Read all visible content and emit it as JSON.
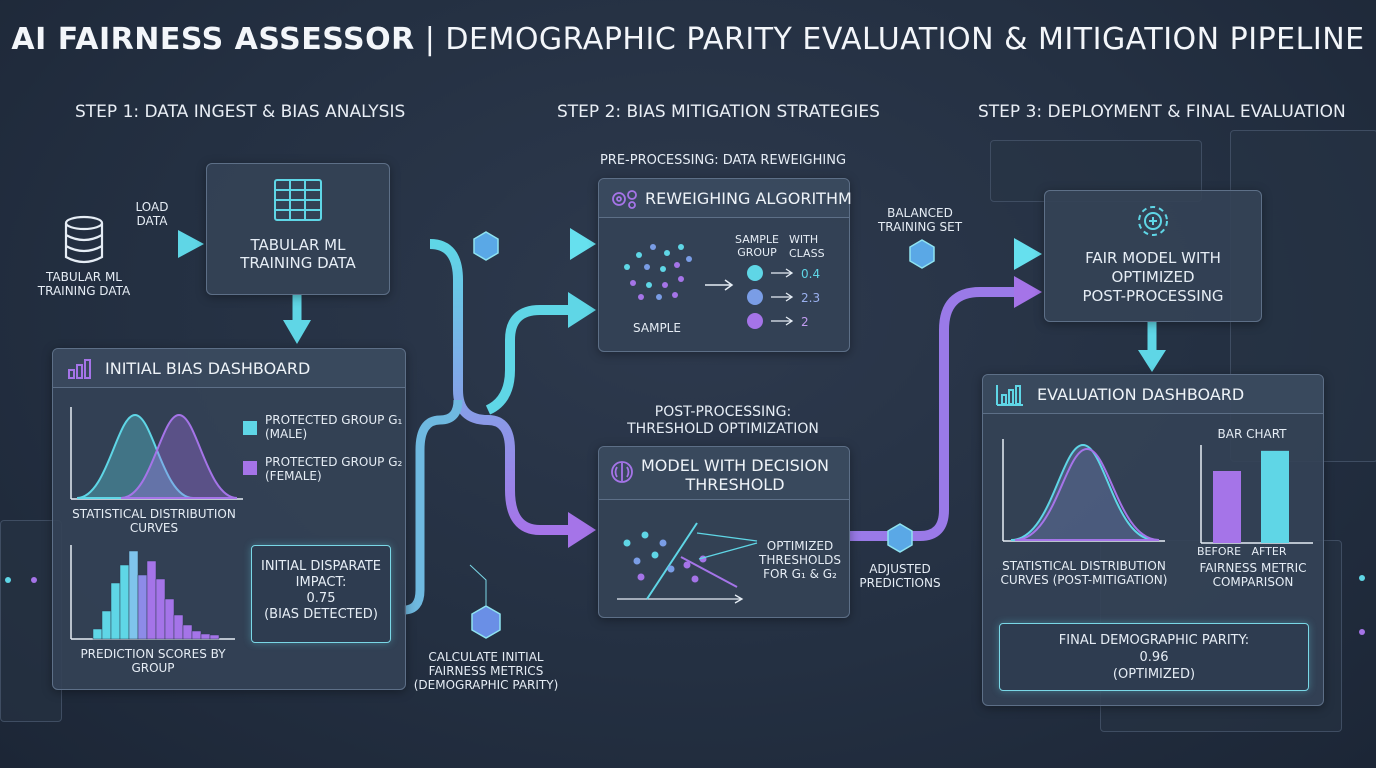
{
  "title_bold": "AI FAIRNESS ASSESSOR",
  "title_rest": " | DEMOGRAPHIC PARITY EVALUATION & MITIGATION PIPELINE",
  "steps": {
    "step1": "STEP 1: DATA INGEST & BIAS ANALYSIS",
    "step2": "STEP 2: BIAS MITIGATION STRATEGIES",
    "step3": "STEP 3: DEPLOYMENT & FINAL EVALUATION"
  },
  "ingest": {
    "load_data": [
      "LOAD",
      "DATA"
    ],
    "db_label": [
      "TABULAR ML",
      "TRAINING DATA"
    ],
    "card_label": [
      "TABULAR ML",
      "TRAINING DATA"
    ]
  },
  "initial_dashboard": {
    "title": "INITIAL BIAS DASHBOARD",
    "legend_g1": [
      "PROTECTED GROUP G₁",
      "(MALE)"
    ],
    "legend_g2": [
      "PROTECTED GROUP G₂",
      "(FEMALE)"
    ],
    "curves_caption": [
      "STATISTICAL DISTRIBUTION",
      "CURVES"
    ],
    "hist_caption": [
      "PREDICTION SCORES BY",
      "GROUP"
    ],
    "disparate": [
      "INITIAL DISPARATE",
      "IMPACT:",
      "0.75",
      "(BIAS DETECTED)"
    ]
  },
  "calc_label": [
    "CALCULATE INITIAL",
    "FAIRNESS METRICS",
    "(DEMOGRAPHIC PARITY)"
  ],
  "preprocessing": {
    "section": "PRE-PROCESSING: DATA REWEIGHING",
    "title": "REWEIGHING ALGORITHM",
    "sample_caption": "SAMPLE",
    "col1": [
      "SAMPLE",
      "GROUP"
    ],
    "col2": "WITH CLASS",
    "weights": [
      "0.4",
      "2.3",
      "2"
    ]
  },
  "balanced": [
    "BALANCED",
    "TRAINING SET"
  ],
  "postprocessing": {
    "section": [
      "POST-PROCESSING:",
      "THRESHOLD OPTIMIZATION"
    ],
    "title": [
      "MODEL WITH DECISION",
      "THRESHOLD"
    ],
    "thresholds": [
      "OPTIMIZED",
      "THRESHOLDS",
      "FOR G₁ & G₂"
    ]
  },
  "adjusted": [
    "ADJUSTED",
    "PREDICTIONS"
  ],
  "fair_model": [
    "FAIR MODEL WITH",
    "OPTIMIZED",
    "POST-PROCESSING"
  ],
  "eval_dashboard": {
    "title": "EVALUATION DASHBOARD",
    "bar_title": "BAR CHART",
    "bar_before": "BEFORE",
    "bar_after": "AFTER",
    "curves_caption": [
      "STATISTICAL DISTRIBUTION",
      "CURVES (POST-MITIGATION)"
    ],
    "bar_caption": [
      "FAIRNESS METRIC",
      "COMPARISON"
    ],
    "final": [
      "FINAL DEMOGRAPHIC PARITY:",
      "0.96",
      "(OPTIMIZED)"
    ]
  },
  "chart_data": [
    {
      "type": "bar",
      "title": "BAR CHART",
      "categories": [
        "BEFORE",
        "AFTER"
      ],
      "values": [
        0.75,
        0.96
      ],
      "xlabel": "FAIRNESS METRIC COMPARISON"
    }
  ],
  "colors": {
    "cyan": "#5fd6e6",
    "purple": "#a574e8",
    "background": "#253244",
    "card": "#344256"
  }
}
